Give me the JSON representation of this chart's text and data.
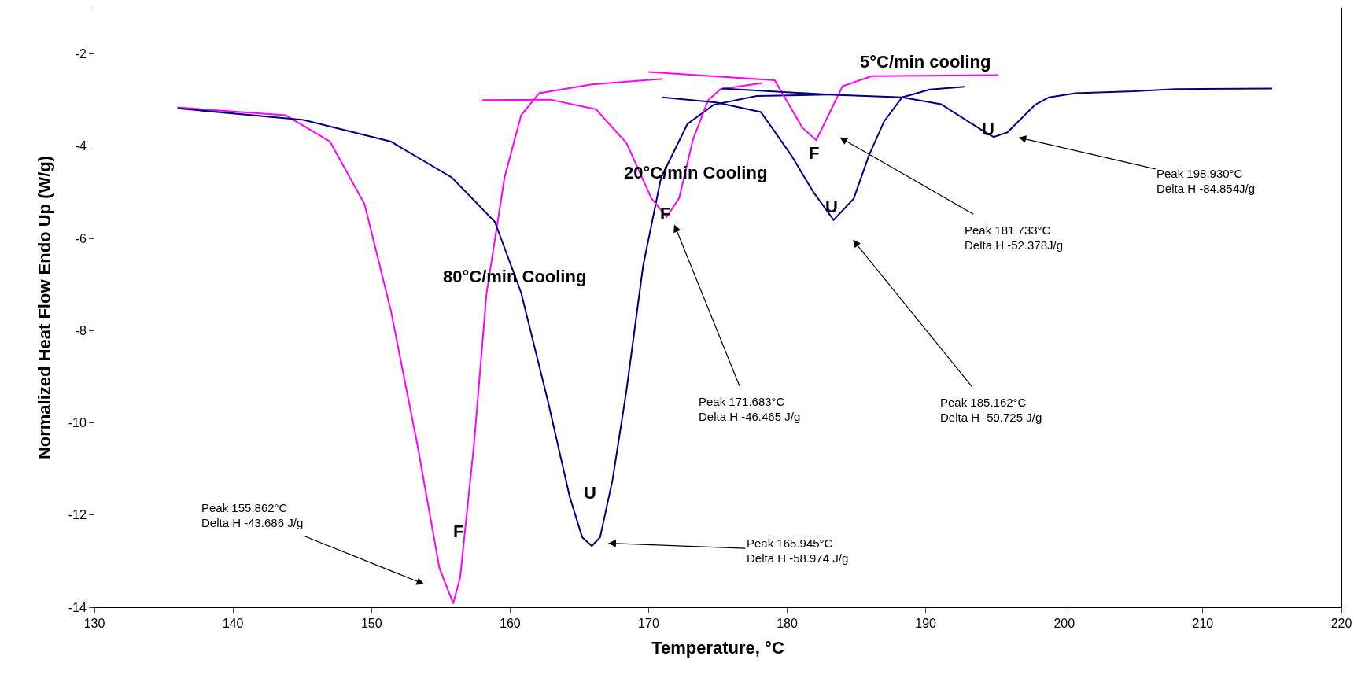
{
  "chart_data": {
    "type": "line",
    "xlabel": "Temperature, °C",
    "ylabel": "Normalized Heat Flow Endo Up (W/g)",
    "xlim": [
      130,
      220
    ],
    "xticks": [
      130,
      140,
      150,
      160,
      170,
      180,
      190,
      200,
      210,
      220
    ],
    "ylim": [
      -14,
      -1
    ],
    "yticks": [
      -14,
      -12,
      -10,
      -8,
      -6,
      -4,
      -2
    ],
    "marker": "none",
    "line_style": "solid",
    "series": [
      {
        "color": "#ff00ff",
        "x": [
          136,
          143.8,
          147,
          149.5,
          151.4,
          153.3,
          154.9,
          155.9,
          156.4,
          157.4,
          158.3,
          159.6,
          160.8,
          162.1,
          165.9,
          171.0
        ],
        "values": [
          -3.16,
          -3.33,
          -3.9,
          -5.26,
          -7.57,
          -10.46,
          -13.15,
          -13.92,
          -13.35,
          -10.46,
          -7.2,
          -4.68,
          -3.33,
          -2.85,
          -2.66,
          -2.54
        ]
      },
      {
        "color": "#000080",
        "x": [
          136,
          145.1,
          151.4,
          155.8,
          158.9,
          160.8,
          162.7,
          164.3,
          165.2,
          165.9,
          166.5,
          167.4,
          168.4,
          169.6,
          170.9,
          172.8,
          174.7,
          177.8,
          183.0
        ],
        "values": [
          -3.18,
          -3.43,
          -3.9,
          -4.68,
          -5.64,
          -7.18,
          -9.49,
          -11.6,
          -12.48,
          -12.67,
          -12.48,
          -11.23,
          -9.3,
          -6.6,
          -4.68,
          -3.52,
          -3.1,
          -2.91,
          -2.88
        ]
      },
      {
        "color": "#ff00ff",
        "x": [
          158.0,
          162.9,
          166.2,
          168.4,
          170.2,
          171.3,
          172.2,
          173.2,
          174.3,
          175.2,
          178.2
        ],
        "values": [
          -3.0,
          -2.99,
          -3.2,
          -3.93,
          -5.13,
          -5.53,
          -5.13,
          -3.86,
          -3.0,
          -2.76,
          -2.63
        ]
      },
      {
        "color": "#000080",
        "x": [
          171.0,
          174.9,
          178.1,
          180.3,
          181.9,
          183.35,
          184.8,
          185.9,
          187.0,
          188.3,
          190.3,
          192.8
        ],
        "values": [
          -2.94,
          -3.05,
          -3.26,
          -4.2,
          -5.0,
          -5.6,
          -5.14,
          -4.2,
          -3.46,
          -2.94,
          -2.77,
          -2.71
        ]
      },
      {
        "color": "#ff00ff",
        "x": [
          170.0,
          179.1,
          181.1,
          182.1,
          184.0,
          186.1,
          195.2
        ],
        "values": [
          -2.39,
          -2.57,
          -3.6,
          -3.87,
          -2.7,
          -2.48,
          -2.46
        ]
      },
      {
        "color": "#000080",
        "x": [
          175.3,
          183.0,
          188.3,
          191.1,
          194.2,
          194.9,
          195.9,
          197.9,
          198.9,
          200.8,
          205.0,
          208.0,
          215.0
        ],
        "values": [
          -2.75,
          -2.88,
          -2.94,
          -3.09,
          -3.68,
          -3.8,
          -3.7,
          -3.1,
          -2.94,
          -2.85,
          -2.81,
          -2.76,
          -2.75
        ]
      }
    ],
    "annotations": [
      "80°C/min Cooling",
      "20°C/min Cooling",
      "5°C/min cooling",
      "F",
      "U",
      "F",
      "U",
      "F",
      "U",
      "Peak 155.862°C\nDelta H -43.686 J/g",
      "Peak 165.945°C\nDelta H -58.974 J/g",
      "Peak 171.683°C\nDelta H -46.465 J/g",
      "Peak 185.162°C\nDelta H -59.725 J/g",
      "Peak 181.733°C\nDelta H -52.378J/g",
      "Peak 198.930°C\nDelta H -84.854J/g"
    ]
  }
}
